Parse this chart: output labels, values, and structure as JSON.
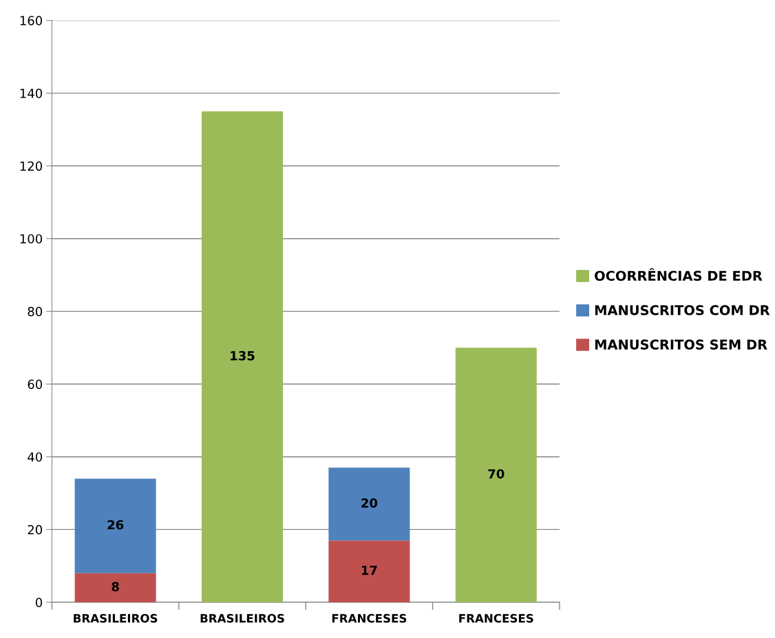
{
  "chart_data": {
    "type": "bar",
    "stacked": true,
    "categories": [
      "BRASILEIROS",
      "BRASILEIROS",
      "FRANCESES",
      "FRANCESES"
    ],
    "series": [
      {
        "name": "MANUSCRITOS SEM DR",
        "color": "#c0504d",
        "values": [
          8,
          null,
          17,
          null
        ]
      },
      {
        "name": "MANUSCRITOS COM DR",
        "color": "#4f81bd",
        "values": [
          26,
          null,
          20,
          null
        ]
      },
      {
        "name": "OCORRÊNCIAS DE EDR",
        "color": "#9bbb59",
        "values": [
          null,
          135,
          null,
          70
        ]
      }
    ],
    "ylim": [
      0,
      160
    ],
    "yticks": [
      0,
      20,
      40,
      60,
      80,
      100,
      120,
      140,
      160
    ],
    "grid": "y",
    "legend": "right",
    "data_labels": true
  }
}
